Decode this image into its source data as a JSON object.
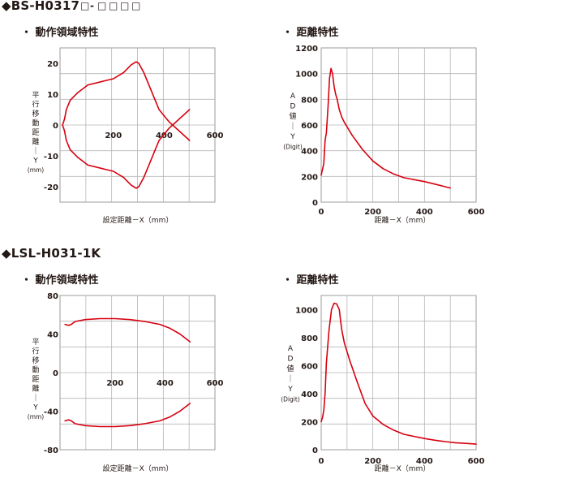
{
  "sections": [
    {
      "title": "◆BS-H0317",
      "title_boxes": [
        "□",
        "-",
        "□",
        "□",
        "□",
        "□"
      ],
      "charts": [
        "・ 動作領域特性",
        "・ 距離特性"
      ]
    },
    {
      "title": "◆LSL-H031-1K",
      "charts": [
        "・ 動作領域特性",
        "・ 距離特性"
      ]
    }
  ],
  "chart_data": [
    {
      "type": "line",
      "title": "・ 動作領域特性",
      "xlabel": "設定距離－X（mm）",
      "ylabel_chars": [
        "平",
        "行",
        "移",
        "動",
        "距",
        "離",
        "｜",
        "Y",
        "(mm)"
      ],
      "xlim": [
        -10,
        600
      ],
      "ylim": [
        -25,
        25
      ],
      "xticks": [
        200,
        400,
        600
      ],
      "yticks": [
        20,
        10,
        0,
        -10,
        -20
      ],
      "grid": true,
      "line_color": "#d7000f",
      "series": [
        {
          "x": [
            0,
            2,
            8,
            15,
            30,
            60,
            100,
            150,
            200,
            240,
            270,
            290,
            300,
            320,
            350,
            380,
            420,
            460,
            500
          ],
          "y": [
            0,
            0.5,
            2,
            5,
            8,
            10.5,
            13,
            14,
            15,
            17,
            19.5,
            20.5,
            20,
            17,
            11,
            5,
            1,
            -2,
            -5
          ]
        },
        {
          "x": [
            0,
            2,
            8,
            15,
            30,
            60,
            100,
            150,
            200,
            240,
            270,
            290,
            300,
            320,
            350,
            380,
            420,
            460,
            500
          ],
          "y": [
            0,
            -0.5,
            -2,
            -5,
            -8,
            -10.5,
            -13,
            -14,
            -15,
            -17,
            -19.5,
            -20.5,
            -20,
            -17,
            -11,
            -5,
            -1,
            2,
            5
          ]
        }
      ]
    },
    {
      "type": "line",
      "title": "・ 距離特性",
      "xlabel": "距離－X（mm）",
      "ylabel_chars": [
        "A",
        "D",
        "値",
        "｜",
        "Y",
        "(Digit)"
      ],
      "xlim": [
        0,
        600
      ],
      "ylim": [
        0,
        1200
      ],
      "xticks": [
        0,
        200,
        400,
        600
      ],
      "yticks": [
        0,
        200,
        400,
        600,
        800,
        1000,
        1200
      ],
      "grid": true,
      "line_color": "#d7000f",
      "series": [
        {
          "x": [
            0,
            10,
            15,
            20,
            27,
            32,
            38,
            44,
            50,
            56,
            62,
            70,
            80,
            90,
            120,
            160,
            200,
            240,
            280,
            320,
            360,
            400,
            440,
            480,
            500
          ],
          "y": [
            210,
            300,
            480,
            540,
            760,
            960,
            1040,
            1000,
            900,
            840,
            800,
            720,
            660,
            620,
            520,
            410,
            320,
            260,
            220,
            190,
            175,
            160,
            140,
            120,
            110
          ]
        }
      ]
    },
    {
      "type": "line",
      "title": "・ 動作領域特性",
      "xlabel": "設定距離－X（mm）",
      "ylabel_chars": [
        "平",
        "行",
        "移",
        "動",
        "距",
        "離",
        "｜",
        "Y",
        "(mm)"
      ],
      "xlim": [
        -20,
        600
      ],
      "ylim": [
        -80,
        80
      ],
      "xticks": [
        200,
        400,
        600
      ],
      "yticks": [
        80,
        40,
        0,
        -40,
        -80
      ],
      "grid": true,
      "line_color": "#d7000f",
      "series": [
        {
          "x": [
            0,
            15,
            25,
            40,
            80,
            140,
            200,
            260,
            320,
            380,
            420,
            460,
            500
          ],
          "y": [
            50,
            49,
            50,
            53,
            55,
            56,
            56,
            55,
            53,
            50,
            46,
            40,
            32
          ]
        },
        {
          "x": [
            0,
            15,
            25,
            40,
            80,
            140,
            200,
            260,
            320,
            380,
            420,
            460,
            500
          ],
          "y": [
            -50,
            -49,
            -50,
            -53,
            -55,
            -56,
            -56,
            -55,
            -53,
            -50,
            -46,
            -40,
            -32
          ]
        }
      ]
    },
    {
      "type": "line",
      "title": "・ 距離特性",
      "xlabel": "距離－X（mm）",
      "ylabel_chars": [
        "A",
        "D",
        "値",
        "｜",
        "Y",
        "(Digit)"
      ],
      "xlim": [
        0,
        600
      ],
      "ylim": [
        0,
        1100
      ],
      "xticks": [
        0,
        200,
        400,
        600
      ],
      "yticks": [
        0,
        200,
        400,
        600,
        800,
        1000
      ],
      "grid": true,
      "line_color": "#d7000f",
      "series": [
        {
          "x": [
            0,
            5,
            10,
            15,
            20,
            30,
            40,
            50,
            60,
            70,
            75,
            80,
            90,
            110,
            140,
            170,
            200,
            240,
            280,
            320,
            360,
            400,
            440,
            480,
            520,
            560,
            600
          ],
          "y": [
            200,
            230,
            280,
            400,
            620,
            850,
            1000,
            1045,
            1040,
            1000,
            920,
            850,
            760,
            640,
            480,
            330,
            240,
            180,
            140,
            110,
            95,
            80,
            68,
            58,
            50,
            45,
            40
          ]
        }
      ]
    }
  ]
}
